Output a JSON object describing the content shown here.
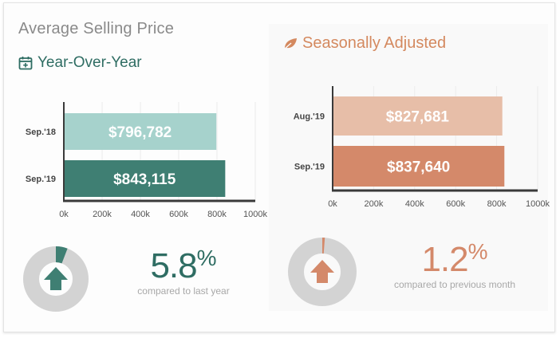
{
  "header": {
    "title": "Average Selling Price",
    "left_subtitle": "Year-Over-Year",
    "right_subtitle": "Seasonally Adjusted"
  },
  "colors": {
    "teal_dark": "#3f7f73",
    "teal_light": "#a6d2cc",
    "orange_dark": "#d4896a",
    "orange_light": "#e7bea8",
    "title_teal": "#2f6d63",
    "title_orange": "#d4895f",
    "donut_track": "#d3d3d3"
  },
  "icons": {
    "left_subtitle_icon": "calendar-plus-icon",
    "right_subtitle_icon": "leaf-icon",
    "left_kpi_icon": "arrow-up-icon",
    "right_kpi_icon": "arrow-up-icon"
  },
  "chart_data": [
    {
      "type": "bar",
      "orientation": "horizontal",
      "categories": [
        "Sep.'18",
        "Sep.'19"
      ],
      "values": [
        796782,
        843115
      ],
      "value_labels": [
        "$796,782",
        "$843,115"
      ],
      "bar_colors": [
        "#a6d2cc",
        "#3f7f73"
      ],
      "xlim": [
        0,
        1000000
      ],
      "xticks": [
        0,
        200000,
        400000,
        600000,
        800000,
        1000000
      ],
      "xtick_labels": [
        "0k",
        "200k",
        "400k",
        "600k",
        "800k",
        "1000k"
      ],
      "grid": true
    },
    {
      "type": "bar",
      "orientation": "horizontal",
      "categories": [
        "Aug.'19",
        "Sep.'19"
      ],
      "values": [
        827681,
        837640
      ],
      "value_labels": [
        "$827,681",
        "$837,640"
      ],
      "bar_colors": [
        "#e7bea8",
        "#d4896a"
      ],
      "xlim": [
        0,
        1000000
      ],
      "xticks": [
        0,
        200000,
        400000,
        600000,
        800000,
        1000000
      ],
      "xtick_labels": [
        "0k",
        "200k",
        "400k",
        "600k",
        "800k",
        "1000k"
      ],
      "grid": true
    }
  ],
  "kpis": [
    {
      "value": "5.8",
      "unit": "%",
      "caption": "compared to last year",
      "fraction": 0.058,
      "color": "#3f7f73"
    },
    {
      "value": "1.2",
      "unit": "%",
      "caption": "compared to previous month",
      "fraction": 0.012,
      "color": "#d4896a"
    }
  ]
}
